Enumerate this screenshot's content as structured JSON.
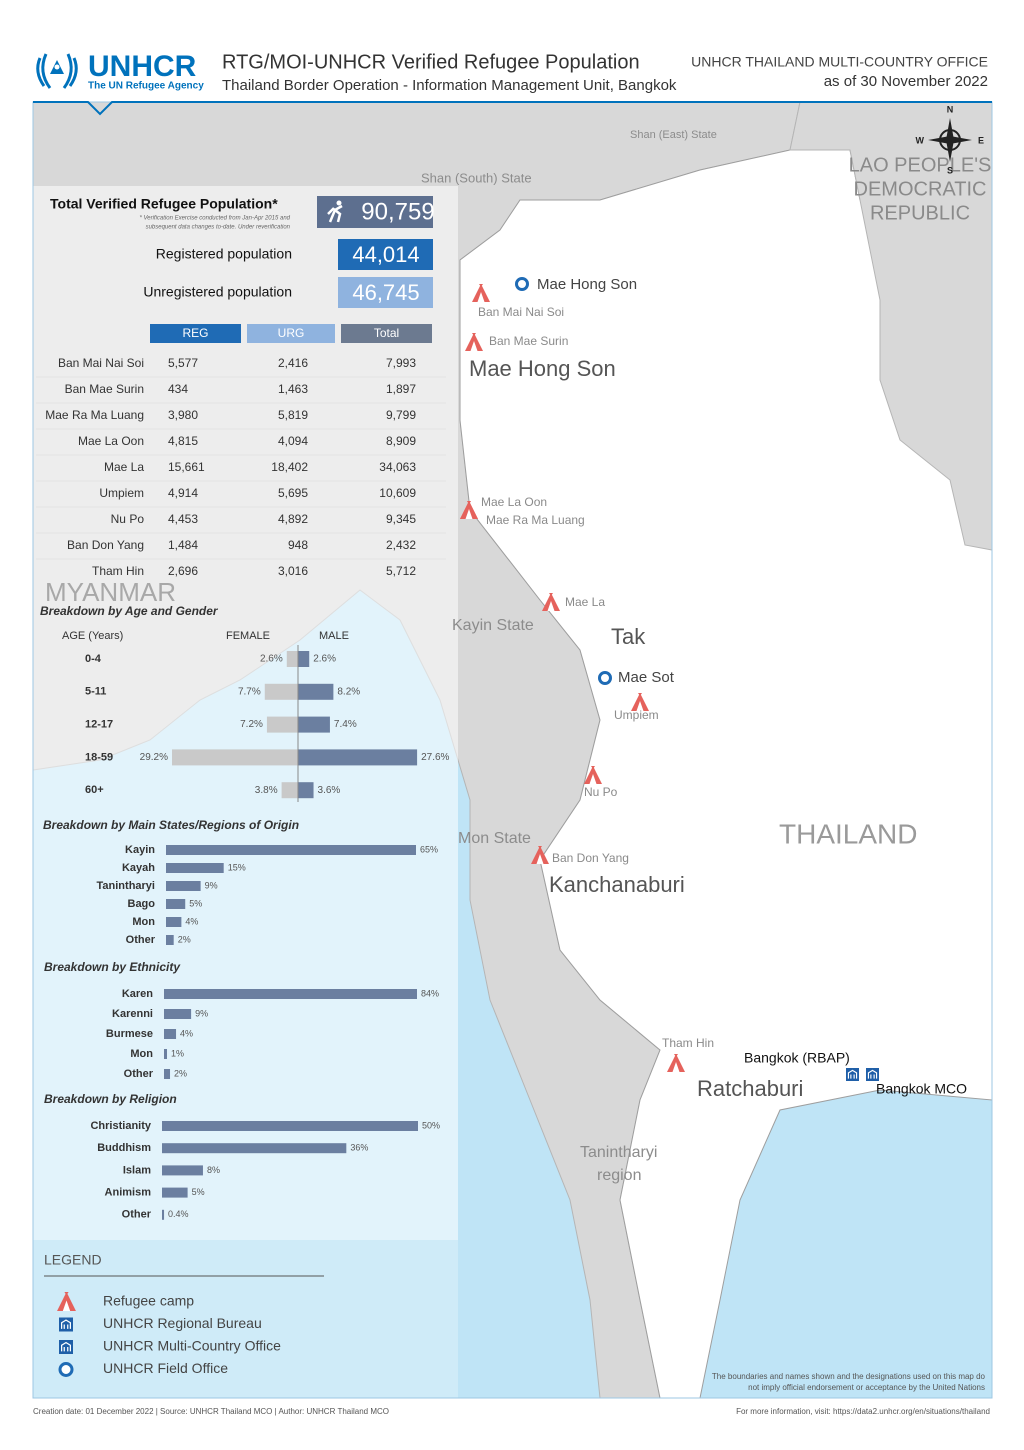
{
  "header": {
    "logo_name": "UNHCR",
    "logo_tagline": "The UN Refugee Agency",
    "title": "RTG/MOI-UNHCR Verified Refugee Population",
    "subtitle": "Thailand Border Operation - Information Management Unit, Bangkok",
    "office": "UNHCR THAILAND MULTI-COUNTRY OFFICE",
    "date": "as of 30 November 2022"
  },
  "summary": {
    "total_label": "Total Verified Refugee Population*",
    "note": [
      "* Verification Exercise conducted from Jan-Apr 2015 and",
      "subsequent data changes to-date. Under reverification"
    ],
    "total": "90,759",
    "registered_label": "Registered population",
    "registered": "44,014",
    "unregistered_label": "Unregistered population",
    "unregistered": "46,745"
  },
  "table": {
    "columns": [
      "REG",
      "URG",
      "Total"
    ],
    "rows": [
      [
        "Ban Mai Nai Soi",
        "5,577",
        "2,416",
        "7,993"
      ],
      [
        "Ban Mae Surin",
        "434",
        "1,463",
        "1,897"
      ],
      [
        "Mae Ra Ma Luang",
        "3,980",
        "5,819",
        "9,799"
      ],
      [
        "Mae La Oon",
        "4,815",
        "4,094",
        "8,909"
      ],
      [
        "Mae La",
        "15,661",
        "18,402",
        "34,063"
      ],
      [
        "Umpiem",
        "4,914",
        "5,695",
        "10,609"
      ],
      [
        "Nu Po",
        "4,453",
        "4,892",
        "9,345"
      ],
      [
        "Ban Don Yang",
        "1,484",
        "948",
        "2,432"
      ],
      [
        "Tham Hin",
        "2,696",
        "3,016",
        "5,712"
      ]
    ]
  },
  "chart_data": [
    {
      "type": "pyramid",
      "title": "Breakdown by Age and Gender",
      "category_label": "AGE (Years)",
      "categories": [
        "0-4",
        "5-11",
        "12-17",
        "18-59",
        "60+"
      ],
      "series": [
        {
          "name": "FEMALE",
          "color": "#c9c9c9",
          "values": [
            2.6,
            7.7,
            7.2,
            29.2,
            3.8
          ],
          "value_labels": [
            "2.6%",
            "7.7%",
            "7.2%",
            "29.2%",
            "3.8%"
          ]
        },
        {
          "name": "MALE",
          "color": "#6b7fa0",
          "values": [
            2.6,
            8.2,
            7.4,
            27.6,
            3.6
          ],
          "value_labels": [
            "2.6%",
            "8.2%",
            "7.4%",
            "27.6%",
            "3.6%"
          ]
        }
      ]
    },
    {
      "type": "bar",
      "title": "Breakdown by Main States/Regions of Origin",
      "categories": [
        "Kayin",
        "Kayah",
        "Tanintharyi",
        "Bago",
        "Mon",
        "Other"
      ],
      "values": [
        65,
        15,
        9,
        5,
        4,
        2
      ],
      "value_labels": [
        "65%",
        "15%",
        "9%",
        "5%",
        "4%",
        "2%"
      ],
      "color": "#6b7fa0"
    },
    {
      "type": "bar",
      "title": "Breakdown by Ethnicity",
      "categories": [
        "Karen",
        "Karenni",
        "Burmese",
        "Mon",
        "Other"
      ],
      "values": [
        84,
        9,
        4,
        1,
        2
      ],
      "value_labels": [
        "84%",
        "9%",
        "4%",
        "1%",
        "2%"
      ],
      "color": "#6b7fa0"
    },
    {
      "type": "bar",
      "title": "Breakdown by Religion",
      "categories": [
        "Christianity",
        "Buddhism",
        "Islam",
        "Animism",
        "Other"
      ],
      "values": [
        50,
        36,
        8,
        5,
        0.4
      ],
      "value_labels": [
        "50%",
        "36%",
        "8%",
        "5%",
        "0.4%"
      ],
      "color": "#6b7fa0"
    }
  ],
  "map": {
    "countries": [
      "MYANMAR",
      "THAILAND"
    ],
    "laos": [
      "LAO PEOPLE'S",
      "DEMOCRATIC",
      "REPUBLIC"
    ],
    "states": [
      "Shan (East) State",
      "Shan (South) State",
      "Kayin State",
      "Mon State",
      "Tanintharyi",
      "region"
    ],
    "provinces": [
      "Mae Hong Son",
      "Tak",
      "Kanchanaburi",
      "Ratchaburi"
    ],
    "camps": [
      "Ban Mai Nai Soi",
      "Ban Mae Surin",
      "Mae La Oon",
      "Mae Ra Ma Luang",
      "Mae La",
      "Umpiem",
      "Nu Po",
      "Ban Don Yang",
      "Tham Hin"
    ],
    "field_offices": [
      "Mae Hong Son",
      "Mae Sot"
    ],
    "offices": [
      "Bangkok (RBAP)",
      "Bangkok MCO"
    ],
    "compass": [
      "N",
      "E",
      "S",
      "W"
    ],
    "disclaimer": [
      "The boundaries and names shown and the designations used on this map do",
      "not imply official endorsement or acceptance by the United Nations"
    ]
  },
  "legend": {
    "title": "LEGEND",
    "items": [
      "Refugee camp",
      "UNHCR Regional Bureau",
      "UNHCR Multi-Country Office",
      "UNHCR Field Office"
    ]
  },
  "footer": {
    "credits": "Creation date: 01 December 2022   |   Source: UNHCR Thailand MCO   |   Author: UNHCR Thailand MCO",
    "more": "For more information, visit: https://data2.unhcr.org/en/situations/thailand"
  }
}
